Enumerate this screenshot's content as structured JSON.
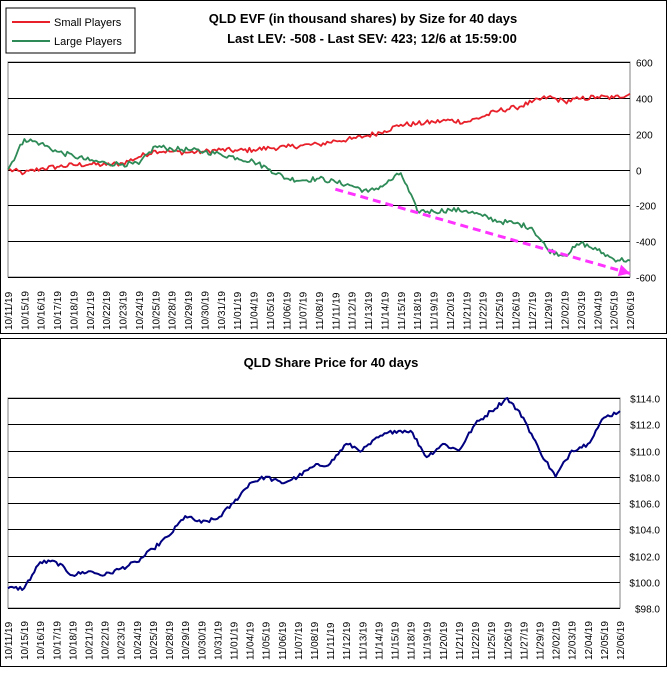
{
  "chart_data": [
    {
      "type": "line",
      "title": "QLD EVF (in thousand shares) by Size for 40 days",
      "subtitle": "Last LEV: -508 - Last SEV: 423; 12/6 at 15:59:00",
      "legend": {
        "placement": "top-left",
        "entries": [
          "Small Players",
          "Large Players"
        ]
      },
      "ylim": [
        -600,
        600
      ],
      "yticks": [
        600,
        400,
        200,
        0,
        -200,
        -400,
        -600
      ],
      "ytick_labels": [
        "600",
        "400",
        "200",
        "0",
        "-200",
        "-400",
        "-600"
      ],
      "grid": "horizontal",
      "xtick_labels": [
        "10/11/19",
        "10/15/19",
        "10/16/19",
        "10/17/19",
        "10/18/19",
        "10/21/19",
        "10/22/19",
        "10/23/19",
        "10/24/19",
        "10/25/19",
        "10/28/19",
        "10/29/19",
        "10/30/19",
        "10/31/19",
        "11/01/19",
        "11/04/19",
        "11/05/19",
        "11/06/19",
        "11/07/19",
        "11/08/19",
        "11/11/19",
        "11/12/19",
        "11/13/19",
        "11/14/19",
        "11/15/19",
        "11/18/19",
        "11/19/19",
        "11/20/19",
        "11/21/19",
        "11/22/19",
        "11/25/19",
        "11/26/19",
        "11/27/19",
        "11/29/19",
        "12/02/19",
        "12/03/19",
        "12/04/19",
        "12/05/19",
        "12/06/19"
      ],
      "series": [
        {
          "name": "Small Players",
          "color": "#e8202a",
          "x": [
            0,
            1,
            2,
            3,
            4,
            5,
            6,
            7,
            8,
            9,
            10,
            11,
            12,
            13,
            14,
            15,
            16,
            17,
            18,
            19,
            20,
            21,
            22,
            23,
            24,
            25,
            26,
            27,
            28,
            29,
            30,
            31,
            32,
            33,
            34,
            35,
            36,
            37,
            38
          ],
          "values": [
            0,
            -20,
            5,
            15,
            25,
            30,
            25,
            35,
            70,
            105,
            100,
            95,
            100,
            110,
            105,
            110,
            120,
            125,
            135,
            140,
            160,
            170,
            190,
            215,
            250,
            255,
            265,
            275,
            265,
            295,
            330,
            345,
            375,
            405,
            380,
            395,
            405,
            400,
            423
          ]
        },
        {
          "name": "Large Players",
          "color": "#2e8b57",
          "x": [
            0,
            1,
            2,
            3,
            4,
            5,
            6,
            7,
            8,
            9,
            10,
            11,
            12,
            13,
            14,
            15,
            16,
            17,
            18,
            19,
            20,
            21,
            22,
            23,
            24,
            25,
            26,
            27,
            28,
            29,
            30,
            31,
            32,
            33,
            34,
            35,
            36,
            37,
            38
          ],
          "values": [
            0,
            170,
            145,
            100,
            75,
            50,
            35,
            30,
            30,
            130,
            115,
            110,
            100,
            85,
            65,
            45,
            0,
            -50,
            -60,
            -50,
            -70,
            -90,
            -125,
            -85,
            -20,
            -230,
            -235,
            -225,
            -230,
            -260,
            -290,
            -300,
            -325,
            -450,
            -480,
            -410,
            -450,
            -500,
            -508
          ]
        }
      ],
      "annotations": [
        {
          "type": "trend-arrow",
          "color": "#ff33ff",
          "from": [
            20,
            -110
          ],
          "to": [
            38,
            -580
          ]
        }
      ]
    },
    {
      "type": "line",
      "title": "QLD Share Price for 40 days",
      "ylim": [
        98,
        114
      ],
      "yticks": [
        114,
        112,
        110,
        108,
        106,
        104,
        102,
        100,
        98
      ],
      "ytick_labels": [
        "$114.0",
        "$112.0",
        "$110.0",
        "$108.0",
        "$106.0",
        "$104.0",
        "$102.0",
        "$100.0",
        "$98.0"
      ],
      "grid": "horizontal",
      "xtick_labels": [
        "10/11/19",
        "10/15/19",
        "10/16/19",
        "10/17/19",
        "10/18/19",
        "10/21/19",
        "10/22/19",
        "10/23/19",
        "10/24/19",
        "10/25/19",
        "10/28/19",
        "10/29/19",
        "10/30/19",
        "10/31/19",
        "11/01/19",
        "11/04/19",
        "11/05/19",
        "11/06/19",
        "11/07/19",
        "11/08/19",
        "11/11/19",
        "11/12/19",
        "11/13/19",
        "11/14/19",
        "11/15/19",
        "11/18/19",
        "11/19/19",
        "11/20/19",
        "11/21/19",
        "11/22/19",
        "11/25/19",
        "11/26/19",
        "11/27/19",
        "11/29/19",
        "12/02/19",
        "12/03/19",
        "12/04/19",
        "12/05/19",
        "12/06/19"
      ],
      "series": [
        {
          "color": "#000080",
          "x": [
            0,
            1,
            2,
            3,
            4,
            5,
            6,
            7,
            8,
            9,
            10,
            11,
            12,
            13,
            14,
            15,
            16,
            17,
            18,
            19,
            20,
            21,
            22,
            23,
            24,
            25,
            26,
            27,
            28,
            29,
            30,
            31,
            32,
            33,
            34,
            35,
            36,
            37,
            38
          ],
          "values": [
            99.5,
            99.5,
            101.5,
            101.5,
            100.5,
            100.8,
            100.5,
            101.0,
            101.5,
            102.5,
            103.5,
            105.0,
            104.5,
            104.8,
            106.0,
            107.5,
            108.0,
            107.5,
            108.0,
            108.8,
            109.0,
            110.5,
            110.0,
            111.0,
            111.5,
            111.5,
            109.5,
            110.5,
            110.0,
            112.0,
            113.0,
            114.0,
            112.5,
            110.0,
            108.0,
            110.0,
            110.5,
            112.5,
            113.0
          ]
        }
      ]
    }
  ]
}
